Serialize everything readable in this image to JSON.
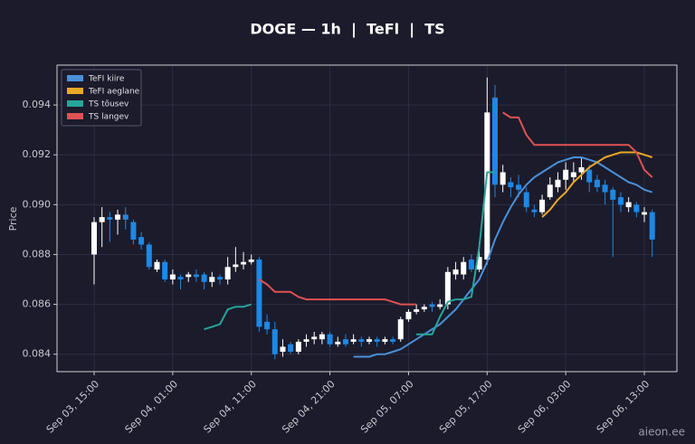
{
  "chart_data": {
    "type": "candlestick",
    "title": "DOGE — 1h  |  TeFl  |  TS",
    "ylabel": "Price",
    "watermark": "aieon.ee",
    "categories": [
      "Sep 03, 15:00",
      null,
      null,
      null,
      null,
      null,
      null,
      null,
      null,
      null,
      "Sep 04, 01:00",
      null,
      null,
      null,
      null,
      null,
      null,
      null,
      null,
      null,
      "Sep 04, 11:00",
      null,
      null,
      null,
      null,
      null,
      null,
      null,
      null,
      null,
      "Sep 04, 21:00",
      null,
      null,
      null,
      null,
      null,
      null,
      null,
      null,
      null,
      "Sep 05, 07:00",
      null,
      null,
      null,
      null,
      null,
      null,
      null,
      null,
      null,
      "Sep 05, 17:00",
      null,
      null,
      null,
      null,
      null,
      null,
      null,
      null,
      null,
      "Sep 06, 03:00",
      null,
      null,
      null,
      null,
      null,
      null,
      null,
      null,
      null,
      "Sep 06, 13:00",
      null
    ],
    "open": [
      0.088,
      0.0893,
      0.0895,
      0.0894,
      0.0896,
      0.0893,
      0.0887,
      0.0884,
      0.0874,
      0.0877,
      0.087,
      0.0871,
      0.0871,
      0.0872,
      0.0872,
      0.0869,
      0.0871,
      0.087,
      0.0875,
      0.0876,
      0.0877,
      0.0878,
      0.0853,
      0.085,
      0.0841,
      0.0844,
      0.0841,
      0.0845,
      0.0846,
      0.0846,
      0.0848,
      0.0844,
      0.0846,
      0.0845,
      0.0846,
      0.0845,
      0.0846,
      0.0845,
      0.0846,
      0.0846,
      0.0854,
      0.0857,
      0.0858,
      0.086,
      0.0859,
      0.086,
      0.0872,
      0.0872,
      0.0878,
      0.0874,
      0.0878,
      0.0943,
      0.0908,
      0.0909,
      0.0908,
      0.0905,
      0.0898,
      0.0897,
      0.0903,
      0.0907,
      0.091,
      0.0911,
      0.0913,
      0.0914,
      0.091,
      0.0908,
      0.0906,
      0.0903,
      0.0899,
      0.09,
      0.0896,
      0.0897
    ],
    "high": [
      0.0895,
      0.0899,
      0.0897,
      0.0898,
      0.0899,
      0.0894,
      0.0889,
      0.0885,
      0.0878,
      0.0878,
      0.0874,
      0.0872,
      0.0873,
      0.0874,
      0.0873,
      0.0873,
      0.0872,
      0.0879,
      0.0883,
      0.0881,
      0.088,
      0.0879,
      0.0856,
      0.0853,
      0.0846,
      0.0845,
      0.0846,
      0.0848,
      0.0849,
      0.0849,
      0.0849,
      0.0847,
      0.0848,
      0.0848,
      0.0847,
      0.0847,
      0.0847,
      0.0847,
      0.0847,
      0.0855,
      0.0858,
      0.086,
      0.086,
      0.0861,
      0.0862,
      0.0875,
      0.0877,
      0.0879,
      0.088,
      0.0885,
      0.0951,
      0.0948,
      0.0916,
      0.0911,
      0.0912,
      0.0907,
      0.09,
      0.0904,
      0.0911,
      0.0913,
      0.0917,
      0.0917,
      0.0919,
      0.0916,
      0.0912,
      0.091,
      0.0907,
      0.0905,
      0.0903,
      0.0901,
      0.0899,
      0.0898
    ],
    "low": [
      0.0868,
      0.0883,
      0.0885,
      0.0888,
      0.089,
      0.0884,
      0.0882,
      0.0874,
      0.0873,
      0.0869,
      0.0868,
      0.0866,
      0.0869,
      0.0869,
      0.0866,
      0.0867,
      0.0868,
      0.0868,
      0.0873,
      0.0874,
      0.0876,
      0.0849,
      0.0848,
      0.0838,
      0.0839,
      0.084,
      0.084,
      0.0843,
      0.0844,
      0.0844,
      0.0843,
      0.0843,
      0.0843,
      0.0844,
      0.0843,
      0.0844,
      0.0843,
      0.0844,
      0.0844,
      0.0845,
      0.0853,
      0.0856,
      0.0857,
      0.0857,
      0.0858,
      0.0858,
      0.087,
      0.087,
      0.0873,
      0.0873,
      0.0876,
      0.0903,
      0.0905,
      0.0903,
      0.0903,
      0.0897,
      0.0895,
      0.0896,
      0.0902,
      0.0905,
      0.0906,
      0.0909,
      0.091,
      0.0905,
      0.0905,
      0.09,
      0.0879,
      0.0897,
      0.0897,
      0.0895,
      0.0893,
      0.0879
    ],
    "close": [
      0.0893,
      0.0895,
      0.0894,
      0.0896,
      0.0894,
      0.0886,
      0.0884,
      0.0875,
      0.0877,
      0.087,
      0.0872,
      0.087,
      0.0872,
      0.0871,
      0.0869,
      0.0871,
      0.087,
      0.0875,
      0.0876,
      0.0877,
      0.0878,
      0.0851,
      0.085,
      0.084,
      0.0843,
      0.0841,
      0.0845,
      0.0846,
      0.0847,
      0.0848,
      0.0844,
      0.0845,
      0.0844,
      0.0846,
      0.0845,
      0.0846,
      0.0845,
      0.0846,
      0.0845,
      0.0854,
      0.0857,
      0.0858,
      0.0859,
      0.0859,
      0.086,
      0.0873,
      0.0874,
      0.0877,
      0.0874,
      0.0879,
      0.0937,
      0.0908,
      0.0913,
      0.0907,
      0.0906,
      0.0899,
      0.0897,
      0.0902,
      0.0908,
      0.091,
      0.0914,
      0.0913,
      0.0915,
      0.0909,
      0.0907,
      0.0905,
      0.0902,
      0.09,
      0.0901,
      0.0897,
      0.0897,
      0.0886
    ],
    "up_color": "#ffffff",
    "down_color": "#1e88e5",
    "series": [
      {
        "name": "TeFI kiire",
        "color": "#4a90d9",
        "values": [
          null,
          null,
          null,
          null,
          null,
          null,
          null,
          null,
          null,
          null,
          null,
          null,
          null,
          null,
          null,
          null,
          null,
          null,
          null,
          null,
          null,
          null,
          null,
          null,
          null,
          null,
          null,
          null,
          null,
          null,
          null,
          null,
          null,
          0.0839,
          0.0839,
          0.0839,
          0.084,
          0.084,
          0.0841,
          0.0842,
          0.0844,
          0.0846,
          0.0848,
          0.085,
          0.0852,
          0.0855,
          0.0858,
          0.0862,
          0.0866,
          0.087,
          0.0877,
          0.0886,
          0.0893,
          0.0899,
          0.0904,
          0.0908,
          0.0911,
          0.0913,
          0.0915,
          0.0917,
          0.0918,
          0.0919,
          0.0919,
          0.0918,
          0.0917,
          0.0915,
          0.0913,
          0.0911,
          0.0909,
          0.0908,
          0.0906,
          0.0905
        ]
      },
      {
        "name": "TeFI aeglane",
        "color": "#e9a825",
        "values": [
          null,
          null,
          null,
          null,
          null,
          null,
          null,
          null,
          null,
          null,
          null,
          null,
          null,
          null,
          null,
          null,
          null,
          null,
          null,
          null,
          null,
          null,
          null,
          null,
          null,
          null,
          null,
          null,
          null,
          null,
          null,
          null,
          null,
          null,
          null,
          null,
          null,
          null,
          null,
          null,
          null,
          null,
          null,
          null,
          null,
          null,
          null,
          null,
          null,
          null,
          null,
          null,
          null,
          null,
          null,
          null,
          null,
          0.0895,
          0.0898,
          0.0902,
          0.0905,
          0.0909,
          0.0912,
          0.0915,
          0.0917,
          0.0919,
          0.092,
          0.0921,
          0.0921,
          0.0921,
          0.092,
          0.0919
        ]
      },
      {
        "name": "TS tõusev",
        "color": "#26a69a",
        "values": [
          null,
          null,
          null,
          null,
          null,
          null,
          null,
          null,
          null,
          null,
          null,
          null,
          null,
          null,
          0.085,
          0.0851,
          0.0852,
          0.0858,
          0.0859,
          0.0859,
          0.086,
          null,
          null,
          null,
          null,
          null,
          null,
          null,
          null,
          null,
          null,
          null,
          null,
          null,
          null,
          null,
          null,
          null,
          null,
          null,
          null,
          0.0848,
          0.0848,
          0.0848,
          0.0855,
          0.0861,
          0.0862,
          0.0862,
          0.0863,
          0.0883,
          0.0913,
          0.0913,
          null,
          null,
          null,
          null,
          null,
          null,
          null,
          null,
          null,
          null,
          null,
          null,
          null,
          null,
          null,
          null,
          null,
          null,
          null,
          null
        ]
      },
      {
        "name": "TS langev",
        "color": "#e05252",
        "values": [
          null,
          null,
          null,
          null,
          null,
          null,
          null,
          null,
          null,
          null,
          null,
          null,
          null,
          null,
          null,
          null,
          null,
          null,
          null,
          null,
          null,
          0.087,
          0.0868,
          0.0865,
          0.0865,
          0.0865,
          0.0863,
          0.0862,
          0.0862,
          0.0862,
          0.0862,
          0.0862,
          0.0862,
          0.0862,
          0.0862,
          0.0862,
          0.0862,
          0.0862,
          0.0861,
          0.086,
          0.086,
          0.086,
          null,
          null,
          null,
          null,
          null,
          null,
          null,
          null,
          null,
          null,
          0.0937,
          0.0935,
          0.0935,
          0.0928,
          0.0924,
          0.0924,
          0.0924,
          0.0924,
          0.0924,
          0.0924,
          0.0924,
          0.0924,
          0.0924,
          0.0924,
          0.0924,
          0.0924,
          0.0924,
          0.0921,
          0.0914,
          0.0911
        ]
      }
    ],
    "ylim": [
      0.0833,
      0.0956
    ],
    "yticks": [
      0.084,
      0.086,
      0.088,
      {
        "value": 0.09,
        "label": "0.090"
      },
      0.092,
      0.094
    ],
    "grid": true,
    "legend": "upper left"
  }
}
